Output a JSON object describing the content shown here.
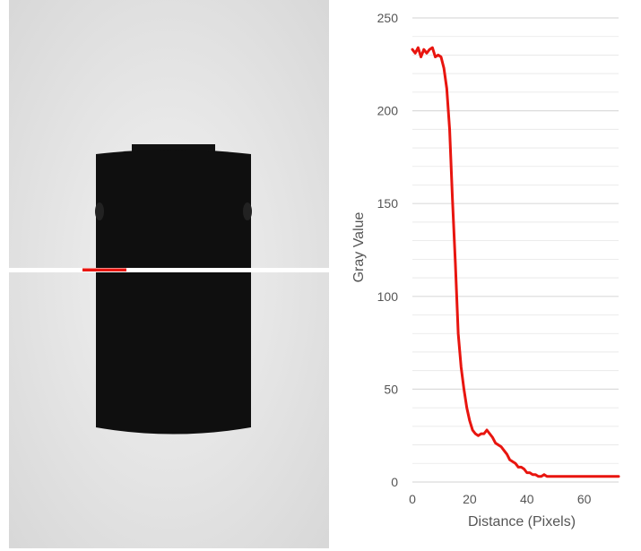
{
  "colors": {
    "profile_line": "#e8150f",
    "scan_line": "#ffffff",
    "object": "#0f0f0f",
    "background_light": "#ececec",
    "gridline": "#e6e6e6",
    "tick_text": "#555555"
  },
  "icons": {
    "xray_image": "radiograph-cylinder-icon"
  },
  "chart_data": {
    "type": "line",
    "title": "",
    "xlabel": "Distance (Pixels)",
    "ylabel": "Gray Value",
    "xlim": [
      0,
      72
    ],
    "ylim": [
      0,
      250
    ],
    "x_ticks": [
      "0",
      "20",
      "40",
      "60"
    ],
    "y_ticks": [
      "0",
      "50",
      "100",
      "150",
      "200",
      "250"
    ],
    "grid": "horizontal",
    "series": [
      {
        "x": [
          0,
          1,
          2,
          3,
          4,
          5,
          6,
          7,
          8,
          9,
          10,
          11,
          12,
          13,
          14,
          15,
          16,
          17,
          18,
          19,
          20,
          21,
          22,
          23,
          24,
          25,
          26,
          27,
          28,
          29,
          30,
          31,
          32,
          33,
          34,
          35,
          36,
          37,
          38,
          39,
          40,
          41,
          42,
          43,
          44,
          45,
          46,
          47,
          48,
          49,
          50,
          51,
          52,
          53,
          54,
          55,
          56,
          57,
          58,
          59,
          60,
          61,
          62,
          63,
          64,
          65,
          66,
          67,
          68,
          69,
          70,
          71,
          72
        ],
        "y": [
          233,
          231,
          234,
          229,
          233,
          231,
          233,
          234,
          229,
          230,
          229,
          223,
          212,
          190,
          152,
          118,
          80,
          62,
          50,
          40,
          33,
          28,
          26,
          25,
          26,
          26,
          28,
          26,
          24,
          21,
          20,
          19,
          17,
          15,
          12,
          11,
          10,
          8,
          8,
          7,
          5,
          5,
          4,
          4,
          3,
          3,
          4,
          3,
          3,
          3,
          3,
          3,
          3,
          3,
          3,
          3,
          3,
          3,
          3,
          3,
          3,
          3,
          3,
          3,
          3,
          3,
          3,
          3,
          3,
          3,
          3,
          3,
          3
        ]
      }
    ]
  }
}
